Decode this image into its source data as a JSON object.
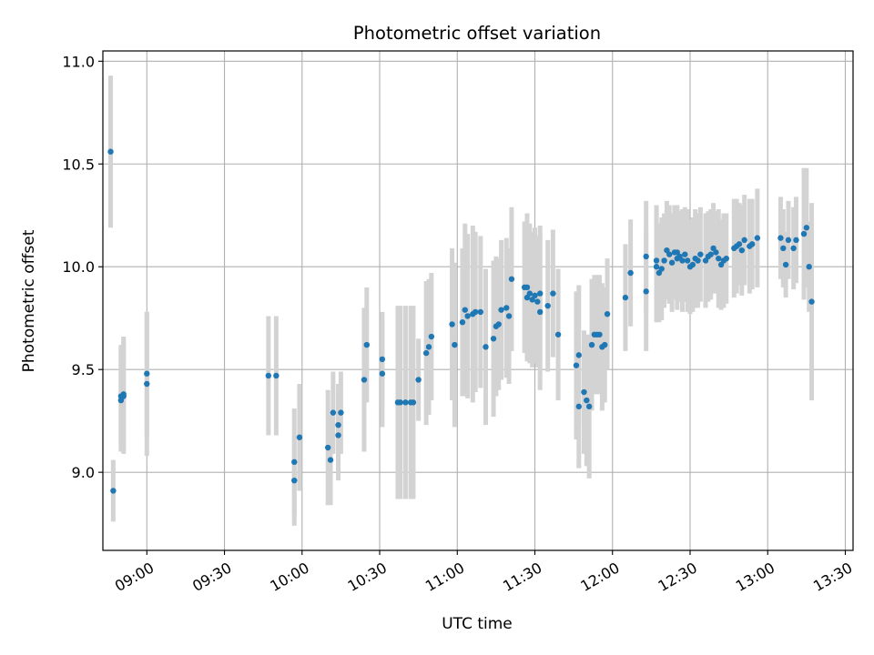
{
  "chart_data": {
    "type": "scatter",
    "title": "Photometric offset variation",
    "xlabel": "UTC time",
    "ylabel": "Photometric offset",
    "xlim": [
      "08:43",
      "13:33"
    ],
    "ylim": [
      8.62,
      11.05
    ],
    "xticks": [
      "09:00",
      "09:30",
      "10:00",
      "10:30",
      "11:00",
      "11:30",
      "12:00",
      "12:30",
      "13:00",
      "13:30"
    ],
    "yticks": [
      9.0,
      9.5,
      10.0,
      10.5,
      11.0
    ],
    "ytick_labels": [
      "9.0",
      "9.5",
      "10.0",
      "10.5",
      "11.0"
    ],
    "grid": true,
    "legend": "none",
    "colors": {
      "point": "#1f77b4",
      "errorbar": "#d3d3d3",
      "grid": "#b0b0b0"
    },
    "series": [
      {
        "x": [
          "08:46",
          "08:47",
          "08:50",
          "08:50",
          "08:51",
          "08:51",
          "09:00",
          "09:00",
          "09:47",
          "09:50",
          "09:57",
          "09:57",
          "09:59",
          "10:10",
          "10:11",
          "10:12",
          "10:14",
          "10:14",
          "10:15",
          "10:24",
          "10:25",
          "10:31",
          "10:31",
          "10:37",
          "10:38",
          "10:40",
          "10:42",
          "10:43",
          "10:45",
          "10:48",
          "10:49",
          "10:50",
          "10:58",
          "10:59",
          "11:02",
          "11:03",
          "11:04",
          "11:06",
          "11:07",
          "11:09",
          "11:11",
          "11:14",
          "11:15",
          "11:16",
          "11:17",
          "11:19",
          "11:20",
          "11:21",
          "11:26",
          "11:27",
          "11:27",
          "11:28",
          "11:29",
          "11:30",
          "11:31",
          "11:32",
          "11:32",
          "11:35",
          "11:37",
          "11:39",
          "11:46",
          "11:47",
          "11:47",
          "11:49",
          "11:50",
          "11:51",
          "11:52",
          "11:53",
          "11:54",
          "11:55",
          "11:56",
          "11:57",
          "11:58",
          "12:05",
          "12:07",
          "12:13",
          "12:13",
          "12:17",
          "12:17",
          "12:18",
          "12:19",
          "12:20",
          "12:21",
          "12:22",
          "12:23",
          "12:24",
          "12:25",
          "12:25",
          "12:26",
          "12:27",
          "12:28",
          "12:29",
          "12:30",
          "12:31",
          "12:32",
          "12:33",
          "12:34",
          "12:36",
          "12:37",
          "12:38",
          "12:39",
          "12:40",
          "12:41",
          "12:42",
          "12:43",
          "12:44",
          "12:47",
          "12:48",
          "12:49",
          "12:50",
          "12:51",
          "12:53",
          "12:54",
          "12:56",
          "13:05",
          "13:06",
          "13:07",
          "13:08",
          "13:10",
          "13:11",
          "13:14",
          "13:15",
          "13:16",
          "13:17"
        ],
        "y": [
          10.56,
          8.91,
          9.37,
          9.35,
          9.38,
          9.37,
          9.48,
          9.43,
          9.47,
          9.47,
          8.96,
          9.05,
          9.17,
          9.12,
          9.06,
          9.29,
          9.18,
          9.23,
          9.29,
          9.45,
          9.62,
          9.55,
          9.48,
          9.34,
          9.34,
          9.34,
          9.34,
          9.34,
          9.45,
          9.58,
          9.61,
          9.66,
          9.72,
          9.62,
          9.73,
          9.79,
          9.76,
          9.77,
          9.78,
          9.78,
          9.61,
          9.65,
          9.71,
          9.72,
          9.79,
          9.8,
          9.76,
          9.94,
          9.9,
          9.85,
          9.9,
          9.87,
          9.84,
          9.86,
          9.83,
          9.78,
          9.87,
          9.81,
          9.87,
          9.67,
          9.52,
          9.57,
          9.32,
          9.39,
          9.35,
          9.32,
          9.62,
          9.67,
          9.67,
          9.67,
          9.61,
          9.62,
          9.77,
          9.85,
          9.97,
          9.88,
          10.05,
          10.0,
          10.03,
          9.97,
          9.99,
          10.03,
          10.08,
          10.06,
          10.02,
          10.07,
          10.04,
          10.07,
          10.05,
          10.03,
          10.06,
          10.03,
          10.0,
          10.01,
          10.04,
          10.03,
          10.06,
          10.03,
          10.05,
          10.06,
          10.09,
          10.07,
          10.04,
          10.01,
          10.03,
          10.04,
          10.09,
          10.1,
          10.11,
          10.08,
          10.13,
          10.1,
          10.11,
          10.14,
          10.14,
          10.09,
          10.01,
          10.13,
          10.09,
          10.13,
          10.16,
          10.19,
          10.0,
          9.83
        ],
        "yerr": [
          0.37,
          0.15,
          0.25,
          0.25,
          0.28,
          0.28,
          0.3,
          0.35,
          0.29,
          0.29,
          0.22,
          0.26,
          0.26,
          0.28,
          0.22,
          0.2,
          0.22,
          0.2,
          0.2,
          0.35,
          0.28,
          0.23,
          0.26,
          0.47,
          0.47,
          0.47,
          0.47,
          0.47,
          0.2,
          0.35,
          0.33,
          0.31,
          0.37,
          0.4,
          0.36,
          0.42,
          0.4,
          0.43,
          0.39,
          0.37,
          0.38,
          0.38,
          0.34,
          0.32,
          0.34,
          0.34,
          0.33,
          0.35,
          0.32,
          0.31,
          0.36,
          0.34,
          0.33,
          0.33,
          0.32,
          0.38,
          0.33,
          0.32,
          0.31,
          0.32,
          0.36,
          0.34,
          0.3,
          0.3,
          0.32,
          0.35,
          0.32,
          0.29,
          0.29,
          0.29,
          0.31,
          0.28,
          0.27,
          0.26,
          0.26,
          0.29,
          0.27,
          0.27,
          0.27,
          0.24,
          0.25,
          0.23,
          0.24,
          0.24,
          0.24,
          0.23,
          0.25,
          0.23,
          0.22,
          0.25,
          0.23,
          0.25,
          0.23,
          0.23,
          0.24,
          0.23,
          0.23,
          0.23,
          0.22,
          0.22,
          0.22,
          0.2,
          0.24,
          0.22,
          0.23,
          0.22,
          0.24,
          0.23,
          0.2,
          0.22,
          0.22,
          0.23,
          0.22,
          0.24,
          0.2,
          0.19,
          0.16,
          0.19,
          0.2,
          0.21,
          0.32,
          0.29,
          0.22,
          0.48
        ]
      }
    ]
  }
}
